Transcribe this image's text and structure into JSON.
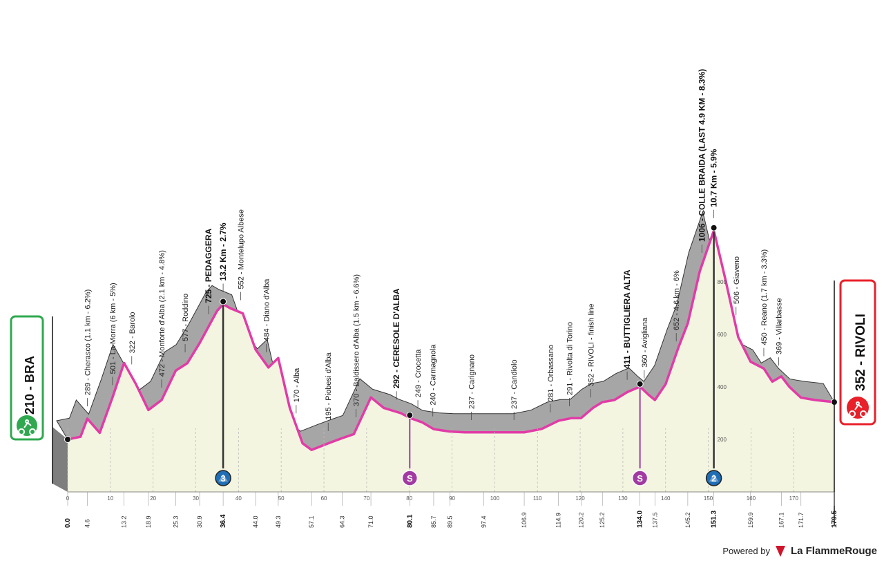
{
  "start": {
    "altitude": "210",
    "name": "BRA",
    "color": "#2fa84f"
  },
  "finish": {
    "altitude": "352",
    "name": "RIVOLI",
    "color": "#e8202a"
  },
  "footer": {
    "powered": "Powered by",
    "brand": "La FlammeRouge"
  },
  "colors": {
    "route": "#e23ba7",
    "fill": "#f3f5e0",
    "hill": "#a6a6a6",
    "sprint": "#a23ba1",
    "climb": "#1f6eb5"
  },
  "chart_data": {
    "type": "area",
    "xlabel": "",
    "ylabel": "",
    "xlim": [
      0,
      179.5
    ],
    "x_ticks": [
      0,
      10,
      20,
      30,
      40,
      50,
      60,
      70,
      80,
      90,
      100,
      110,
      120,
      130,
      140,
      150,
      160,
      170
    ],
    "y_ticks": [
      200,
      400,
      600,
      800
    ],
    "series": [
      {
        "x": [
          0.0,
          3,
          4.6,
          7.5,
          10.5,
          13.2,
          16,
          18.9,
          22,
          25.3,
          28,
          30.9,
          33,
          35,
          36.4,
          38,
          41,
          44.0,
          47,
          49.3,
          52,
          55,
          57.1,
          61,
          64.3,
          67,
          71.0,
          74,
          78,
          80.1,
          83,
          85.7,
          89.5,
          93,
          97.4,
          102,
          106.9,
          111,
          114.9,
          118,
          120.2,
          123,
          125.2,
          128,
          131,
          134.0,
          136,
          137.5,
          140,
          143,
          145.2,
          148,
          151.3,
          154,
          157,
          159.9,
          163,
          165,
          167.1,
          169,
          171.7,
          175,
          179.5
        ],
        "y": [
          210,
          220,
          289,
          235,
          370,
          501,
          420,
          322,
          360,
          472,
          500,
          577,
          640,
          700,
          725,
          710,
          690,
          552,
          484,
          520,
          330,
          195,
          170,
          195,
          215,
          230,
          370,
          330,
          310,
          292,
          275,
          249,
          240,
          237,
          237,
          237,
          237,
          250,
          281,
          291,
          291,
          330,
          352,
          360,
          390,
          411,
          380,
          360,
          420,
          560,
          652,
          850,
          1006,
          820,
          600,
          506,
          480,
          430,
          450,
          410,
          369,
          360,
          352
        ]
      }
    ],
    "ylim": [
      0,
      1100
    ],
    "km_labels": [
      "0.0",
      "4.6",
      "13.2",
      "18.9",
      "25.3",
      "30.9",
      "36.4",
      "44.0",
      "49.3",
      "57.1",
      "64.3",
      "71.0",
      "80.1",
      "85.7",
      "89.5",
      "97.4",
      "106.9",
      "114.9",
      "120.2",
      "125.2",
      "134.0",
      "137.5",
      "145.2",
      "151.3",
      "159.9",
      "167.1",
      "171.7",
      "179.5"
    ],
    "bold_km": [
      "0.0",
      "36.4",
      "80.1",
      "134.0",
      "151.3",
      "179.5"
    ],
    "waypoints": [
      {
        "km": 4.6,
        "text": "289 - Cherasco (1.1 km - 6.2%)",
        "bold": false
      },
      {
        "km": 10.5,
        "text": "501 - La Morra (6 km - 5%)",
        "bold": false
      },
      {
        "km": 15,
        "text": "322 - Barolo",
        "bold": false
      },
      {
        "km": 22,
        "text": "472 - Monforte d'Alba (2.1 km - 4.8%)",
        "bold": false
      },
      {
        "km": 27.5,
        "text": "577 - Roddino",
        "bold": false
      },
      {
        "km": 33,
        "text": "725 - PEDAGGERA",
        "bold": true
      },
      {
        "km": 36.4,
        "text": "13.2 Km - 2.7%",
        "bold": true
      },
      {
        "km": 40.5,
        "text": "552 - Montelupo Albese",
        "bold": false
      },
      {
        "km": 46.5,
        "text": "484 - Diano d'Alba",
        "bold": false
      },
      {
        "km": 53.5,
        "text": "170 - Alba",
        "bold": false
      },
      {
        "km": 61,
        "text": "195 - Piobesi d'Alba",
        "bold": false
      },
      {
        "km": 67.5,
        "text": "370 - Baldissero d'Alba (1.5 km - 6.6%)",
        "bold": false
      },
      {
        "km": 77,
        "text": "292 - CERESOLE D'ALBA",
        "bold": true
      },
      {
        "km": 82,
        "text": "249 - Crocetta",
        "bold": false
      },
      {
        "km": 85.5,
        "text": "240 - Carmagnola",
        "bold": false
      },
      {
        "km": 94.5,
        "text": "237 - Carignano",
        "bold": false
      },
      {
        "km": 104.5,
        "text": "237 - Candiolo",
        "bold": false
      },
      {
        "km": 113,
        "text": "281 - Orbassano",
        "bold": false
      },
      {
        "km": 117.5,
        "text": "291 - Rivolta di Torino",
        "bold": false
      },
      {
        "km": 122.5,
        "text": "352 - RIVOLI - finish line",
        "bold": false
      },
      {
        "km": 131,
        "text": "411 - BUTTIGLIERA ALTA",
        "bold": true
      },
      {
        "km": 135,
        "text": "360 - Avigliana",
        "bold": false
      },
      {
        "km": 142.5,
        "text": "652 - 4.6 km - 6%",
        "bold": false
      },
      {
        "km": 148.5,
        "text": "1006 - COLLE BRAIDA (LAST 4.9 KM - 8.3%)",
        "bold": true
      },
      {
        "km": 151.3,
        "text": "10.7 Km - 5.9%",
        "bold": true
      },
      {
        "km": 156.5,
        "text": "506 - Giaveno",
        "bold": false
      },
      {
        "km": 163,
        "text": "450 - Reano (1.7 km - 3.3%)",
        "bold": false
      },
      {
        "km": 166.5,
        "text": "369 - Villarbasse",
        "bold": false
      }
    ],
    "markers": [
      {
        "km": 36.4,
        "type": "climb",
        "label": "3"
      },
      {
        "km": 80.1,
        "type": "sprint",
        "label": "S"
      },
      {
        "km": 134.0,
        "type": "sprint",
        "label": "S"
      },
      {
        "km": 151.3,
        "type": "climb",
        "label": "2"
      }
    ]
  }
}
